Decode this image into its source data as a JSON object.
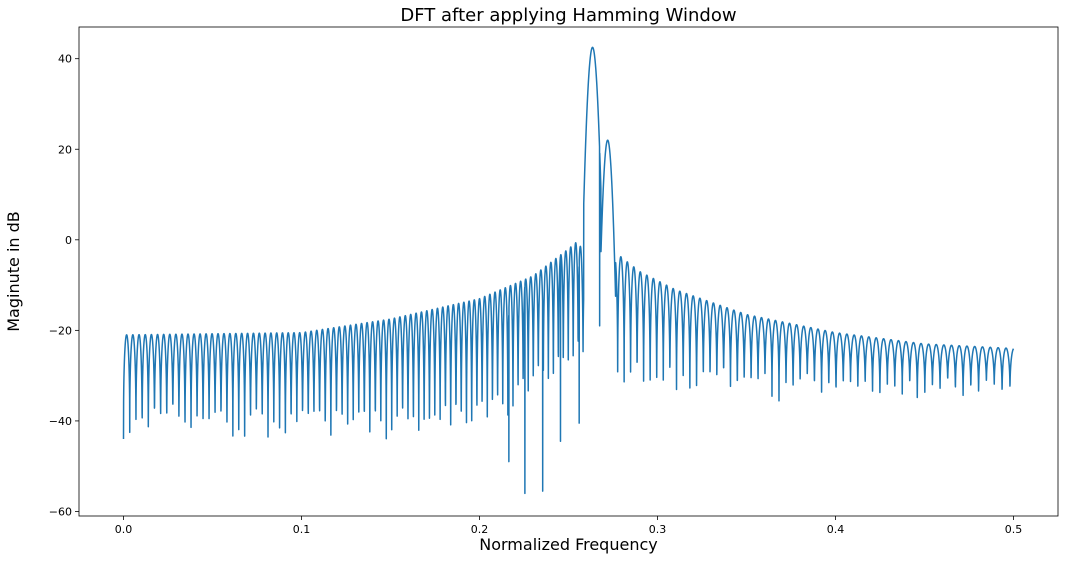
{
  "chart_data": {
    "type": "line",
    "title": "DFT after applying Hamming Window",
    "xlabel": "Normalized Frequency",
    "ylabel": "Maginute in dB",
    "xlim": [
      -0.025,
      0.525
    ],
    "ylim": [
      -61,
      47
    ],
    "xticks": [
      0.0,
      0.1,
      0.2,
      0.3,
      0.4,
      0.5
    ],
    "xtick_labels": [
      "0.0",
      "0.1",
      "0.2",
      "0.3",
      "0.4",
      "0.5"
    ],
    "yticks": [
      -60,
      -40,
      -20,
      0,
      20,
      40
    ],
    "ytick_labels": [
      "−60",
      "−40",
      "−20",
      "0",
      "20",
      "40"
    ],
    "grid": false,
    "line_color": "#1f77b4",
    "series": [
      {
        "peaks": [
          {
            "x": 0.2635,
            "y": 42.5
          },
          {
            "x": 0.272,
            "y": 22.0
          }
        ],
        "sidelobe_envelope_points": [
          [
            0.0,
            -21
          ],
          [
            0.1,
            -20.5
          ],
          [
            0.15,
            -17.5
          ],
          [
            0.2,
            -13
          ],
          [
            0.23,
            -8
          ],
          [
            0.25,
            -2
          ],
          [
            0.256,
            0
          ],
          [
            0.26,
            -8
          ],
          [
            0.277,
            -3
          ],
          [
            0.29,
            -7
          ],
          [
            0.31,
            -11
          ],
          [
            0.35,
            -16.5
          ],
          [
            0.4,
            -20.5
          ],
          [
            0.45,
            -23
          ],
          [
            0.5,
            -24
          ]
        ],
        "trough_floor_points": [
          [
            0.0,
            -44
          ],
          [
            0.1,
            -45
          ],
          [
            0.2,
            -46
          ],
          [
            0.25,
            -33
          ],
          [
            0.3,
            -35
          ],
          [
            0.4,
            -35
          ],
          [
            0.5,
            -35
          ]
        ],
        "deep_nulls": [
          {
            "x": 0.2165,
            "y": -49
          },
          {
            "x": 0.2255,
            "y": -56
          },
          {
            "x": 0.2355,
            "y": -55.5
          },
          {
            "x": 0.2455,
            "y": -44.5
          },
          {
            "x": 0.256,
            "y": -40.5
          },
          {
            "x": 0.2675,
            "y": -19
          }
        ]
      }
    ]
  }
}
